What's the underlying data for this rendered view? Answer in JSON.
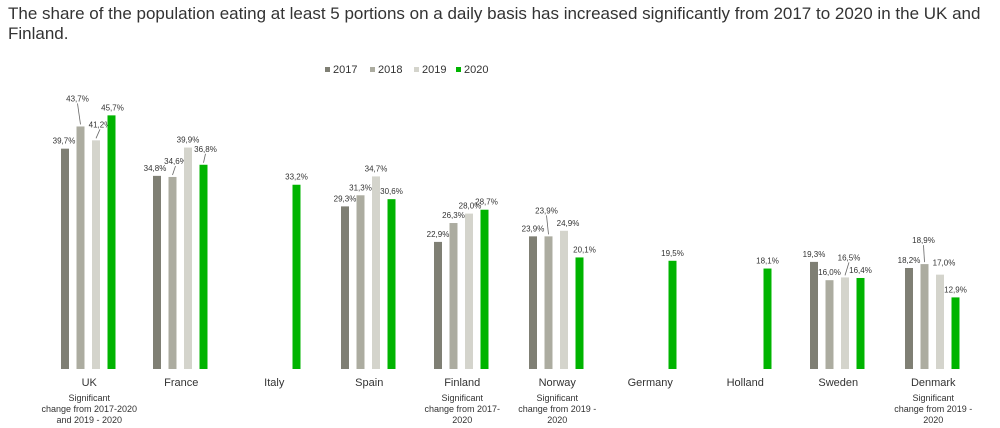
{
  "title": "The share of the population eating at least 5 portions on a daily basis has increased significantly from 2017 to 2020 in the UK and Finland.",
  "chart_data": {
    "type": "bar",
    "title": "The share of the population eating at least 5 portions on a daily basis has increased significantly from 2017 to 2020 in the UK and Finland.",
    "xlabel": "",
    "ylabel": "",
    "ylim": [
      0,
      50
    ],
    "grid": false,
    "legend_position": "top-center",
    "categories": [
      "UK",
      "France",
      "Italy",
      "Spain",
      "Finland",
      "Norway",
      "Germany",
      "Holland",
      "Sweden",
      "Denmark"
    ],
    "series": [
      {
        "name": "2017",
        "color": "#7f7f74",
        "values": [
          39.7,
          34.8,
          null,
          29.3,
          22.9,
          23.9,
          null,
          null,
          19.3,
          18.2
        ],
        "labels": [
          "39,7%",
          "34,8%",
          "",
          "29,3%",
          "22,9%",
          "23,9%",
          "",
          "",
          "19,3%",
          "18,2%"
        ]
      },
      {
        "name": "2018",
        "color": "#acaca0",
        "values": [
          43.7,
          34.6,
          null,
          31.3,
          26.3,
          23.9,
          null,
          null,
          16.0,
          18.9
        ],
        "labels": [
          "43,7%",
          "34,6%",
          "",
          "31,3%",
          "26,3%",
          "23,9%",
          "",
          "",
          "16,0%",
          "18,9%"
        ]
      },
      {
        "name": "2019",
        "color": "#d4d4cc",
        "values": [
          41.2,
          39.9,
          null,
          34.7,
          28.0,
          24.9,
          null,
          null,
          16.5,
          17.0
        ],
        "labels": [
          "41,2%",
          "39,9%",
          "",
          "34,7%",
          "28,0%",
          "24,9%",
          "",
          "",
          "16,5%",
          "17,0%"
        ]
      },
      {
        "name": "2020",
        "color": "#00b400",
        "values": [
          45.7,
          36.8,
          33.2,
          30.6,
          28.7,
          20.1,
          19.5,
          18.1,
          16.4,
          12.9
        ],
        "labels": [
          "45,7%",
          "36,8%",
          "33,2%",
          "30,6%",
          "28,7%",
          "20,1%",
          "19,5%",
          "18,1%",
          "16,4%",
          "12,9%"
        ]
      }
    ],
    "annotations": [
      {
        "category": "UK",
        "lines": [
          "Significant",
          "change from 2017-2020",
          "and 2019 - 2020"
        ]
      },
      {
        "category": "Finland",
        "lines": [
          "Significant",
          "change from 2017-",
          "2020"
        ]
      },
      {
        "category": "Norway",
        "lines": [
          "Significant",
          "change from 2019 -",
          "2020"
        ]
      },
      {
        "category": "Denmark",
        "lines": [
          "Significant",
          "change from 2019 -",
          "2020"
        ]
      }
    ]
  }
}
